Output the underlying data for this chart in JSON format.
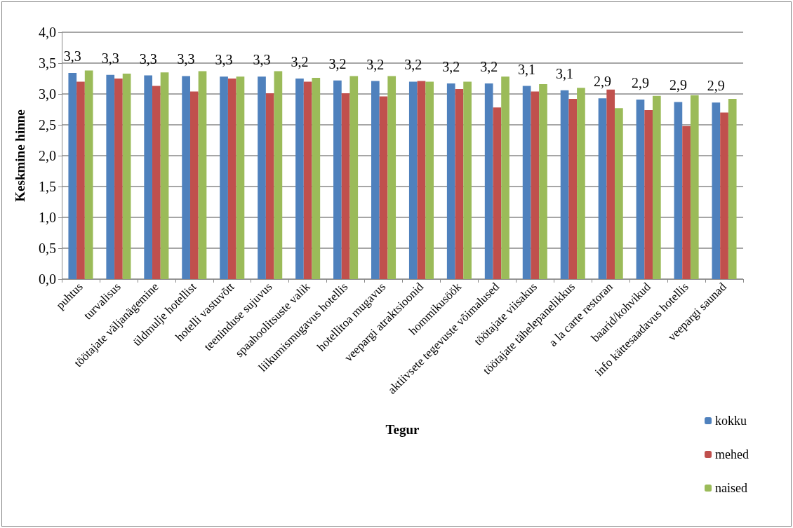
{
  "chart_data": {
    "type": "bar",
    "xlabel": "Tegur",
    "ylabel": "Keskmine hinne",
    "categories": [
      "puhtus",
      "turvalisus",
      "töötajate väljanägemine",
      "üldmulje hotellist",
      "hotelli vastuvõtt",
      "teeninduse sujuvus",
      "spaahoolitsuste valik",
      "liikumismugavus hotellis",
      "hotellitoa mugavus",
      "veepargi atraktsioonid",
      "hommikusöök",
      "aktiivsete tegevuste võimalused",
      "töötajate viisakus",
      "töötajate tähelepanelikkus",
      "a la carte restoran",
      "baarid/kohvikud",
      "info kättesaadavus hotellis",
      "veepargi saunad"
    ],
    "series": [
      {
        "name": "kokku",
        "color": "#4f81bd",
        "values": [
          3.34,
          3.31,
          3.3,
          3.29,
          3.28,
          3.28,
          3.25,
          3.22,
          3.21,
          3.2,
          3.17,
          3.17,
          3.13,
          3.06,
          2.93,
          2.91,
          2.87,
          2.86
        ],
        "value_labels": [
          "3,3",
          "3,3",
          "3,3",
          "3,3",
          "3,3",
          "3,3",
          "3,2",
          "3,2",
          "3,2",
          "3,2",
          "3,2",
          "3,2",
          "3,1",
          "3,1",
          "2,9",
          "2,9",
          "2,9",
          "2,9"
        ]
      },
      {
        "name": "mehed",
        "color": "#c0504d",
        "values": [
          3.2,
          3.25,
          3.13,
          3.04,
          3.25,
          3.01,
          3.2,
          3.01,
          2.96,
          3.21,
          3.08,
          2.78,
          3.04,
          2.92,
          3.07,
          2.74,
          2.48,
          2.7
        ]
      },
      {
        "name": "naised",
        "color": "#9bbb59",
        "values": [
          3.38,
          3.33,
          3.35,
          3.37,
          3.28,
          3.37,
          3.26,
          3.29,
          3.29,
          3.2,
          3.2,
          3.28,
          3.16,
          3.1,
          2.77,
          2.97,
          2.98,
          2.92
        ]
      }
    ],
    "ylim": [
      0,
      4
    ],
    "yticks": [
      {
        "value": 0,
        "label": "0,0"
      },
      {
        "value": 0.5,
        "label": "0,5"
      },
      {
        "value": 1,
        "label": "1,0"
      },
      {
        "value": 1.5,
        "label": "1,5"
      },
      {
        "value": 2,
        "label": "2,0"
      },
      {
        "value": 2.5,
        "label": "2,5"
      },
      {
        "value": 3,
        "label": "3,0"
      },
      {
        "value": 3.5,
        "label": "3,5"
      },
      {
        "value": 4,
        "label": "4,0"
      }
    ],
    "grid": "y",
    "legend": "bottom right"
  }
}
